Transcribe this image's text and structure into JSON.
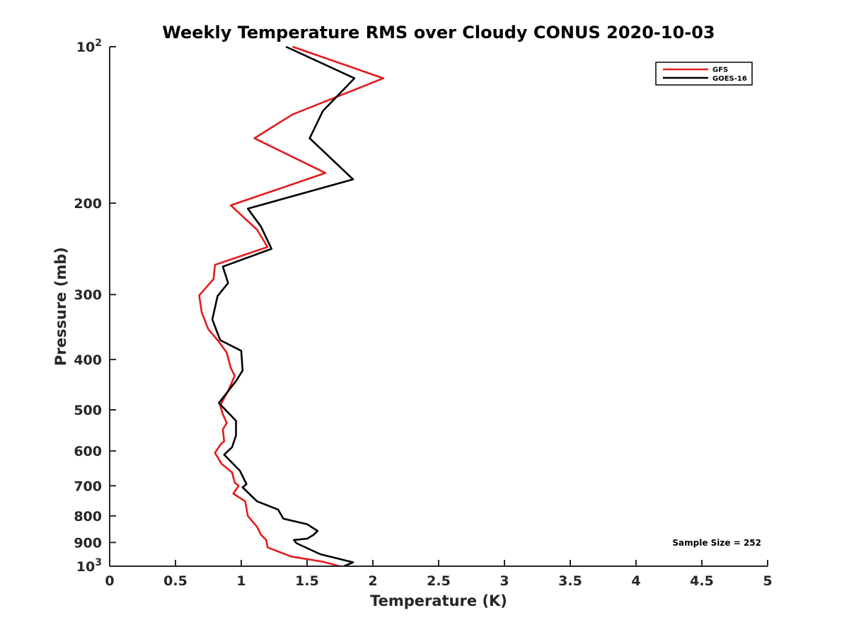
{
  "chart_data": {
    "type": "line",
    "title": "Weekly Temperature RMS over Cloudy CONUS 2020-10-03",
    "xlabel": "Temperature (K)",
    "ylabel": "Pressure (mb)",
    "xlim": [
      0,
      5
    ],
    "ylim": [
      100,
      1000
    ],
    "yscale": "log",
    "yreversed": true,
    "grid": false,
    "legend_position": "top-right",
    "x_ticks": [
      0,
      0.5,
      1,
      1.5,
      2,
      2.5,
      3,
      3.5,
      4,
      4.5,
      5
    ],
    "x_tick_labels": [
      "0",
      "0.5",
      "1",
      "1.5",
      "2",
      "2.5",
      "3",
      "3.5",
      "4",
      "4.5",
      "5"
    ],
    "y_ticks": [
      {
        "value": 100,
        "base": "10",
        "exp": "2"
      },
      {
        "value": 200,
        "label": "200"
      },
      {
        "value": 300,
        "label": "300"
      },
      {
        "value": 400,
        "label": "400"
      },
      {
        "value": 500,
        "label": "500"
      },
      {
        "value": 600,
        "label": "600"
      },
      {
        "value": 700,
        "label": "700"
      },
      {
        "value": 800,
        "label": "800"
      },
      {
        "value": 900,
        "label": "900"
      },
      {
        "value": 1000,
        "base": "10",
        "exp": "3"
      }
    ],
    "series": [
      {
        "name": "GFS",
        "color": "#e41a1c",
        "points": [
          [
            1.39,
            100
          ],
          [
            2.08,
            115
          ],
          [
            1.39,
            135
          ],
          [
            1.1,
            150
          ],
          [
            1.64,
            175
          ],
          [
            0.92,
            202
          ],
          [
            1.12,
            225
          ],
          [
            1.2,
            243
          ],
          [
            0.8,
            263
          ],
          [
            0.79,
            280
          ],
          [
            0.68,
            301
          ],
          [
            0.7,
            325
          ],
          [
            0.75,
            350
          ],
          [
            0.82,
            367
          ],
          [
            0.89,
            388
          ],
          [
            0.92,
            415
          ],
          [
            0.95,
            430
          ],
          [
            0.9,
            460
          ],
          [
            0.84,
            490
          ],
          [
            0.86,
            510
          ],
          [
            0.89,
            530
          ],
          [
            0.86,
            545
          ],
          [
            0.87,
            575
          ],
          [
            0.85,
            580
          ],
          [
            0.8,
            605
          ],
          [
            0.85,
            635
          ],
          [
            0.93,
            660
          ],
          [
            0.95,
            690
          ],
          [
            0.98,
            700
          ],
          [
            0.94,
            725
          ],
          [
            1.03,
            750
          ],
          [
            1.05,
            800
          ],
          [
            1.12,
            840
          ],
          [
            1.15,
            870
          ],
          [
            1.19,
            890
          ],
          [
            1.2,
            920
          ],
          [
            1.38,
            958
          ],
          [
            1.62,
            980
          ],
          [
            1.75,
            1000
          ]
        ]
      },
      {
        "name": "GOES-16",
        "color": "#000000",
        "points": [
          [
            1.34,
            100
          ],
          [
            1.86,
            115
          ],
          [
            1.62,
            133
          ],
          [
            1.52,
            150
          ],
          [
            1.85,
            180
          ],
          [
            1.05,
            205
          ],
          [
            1.15,
            222
          ],
          [
            1.23,
            245
          ],
          [
            0.86,
            265
          ],
          [
            0.9,
            285
          ],
          [
            0.82,
            302
          ],
          [
            0.78,
            335
          ],
          [
            0.84,
            367
          ],
          [
            1.0,
            385
          ],
          [
            1.01,
            420
          ],
          [
            0.96,
            440
          ],
          [
            0.83,
            485
          ],
          [
            0.96,
            525
          ],
          [
            0.96,
            560
          ],
          [
            0.93,
            590
          ],
          [
            0.87,
            610
          ],
          [
            0.99,
            655
          ],
          [
            1.04,
            695
          ],
          [
            1.01,
            705
          ],
          [
            1.12,
            750
          ],
          [
            1.28,
            778
          ],
          [
            1.32,
            810
          ],
          [
            1.5,
            830
          ],
          [
            1.58,
            855
          ],
          [
            1.55,
            870
          ],
          [
            1.5,
            885
          ],
          [
            1.4,
            890
          ],
          [
            1.42,
            903
          ],
          [
            1.6,
            948
          ],
          [
            1.85,
            983
          ],
          [
            1.78,
            1000
          ]
        ]
      }
    ],
    "annotations": [
      {
        "text": "Sample Size = 252",
        "position": "bottom-right"
      }
    ]
  }
}
